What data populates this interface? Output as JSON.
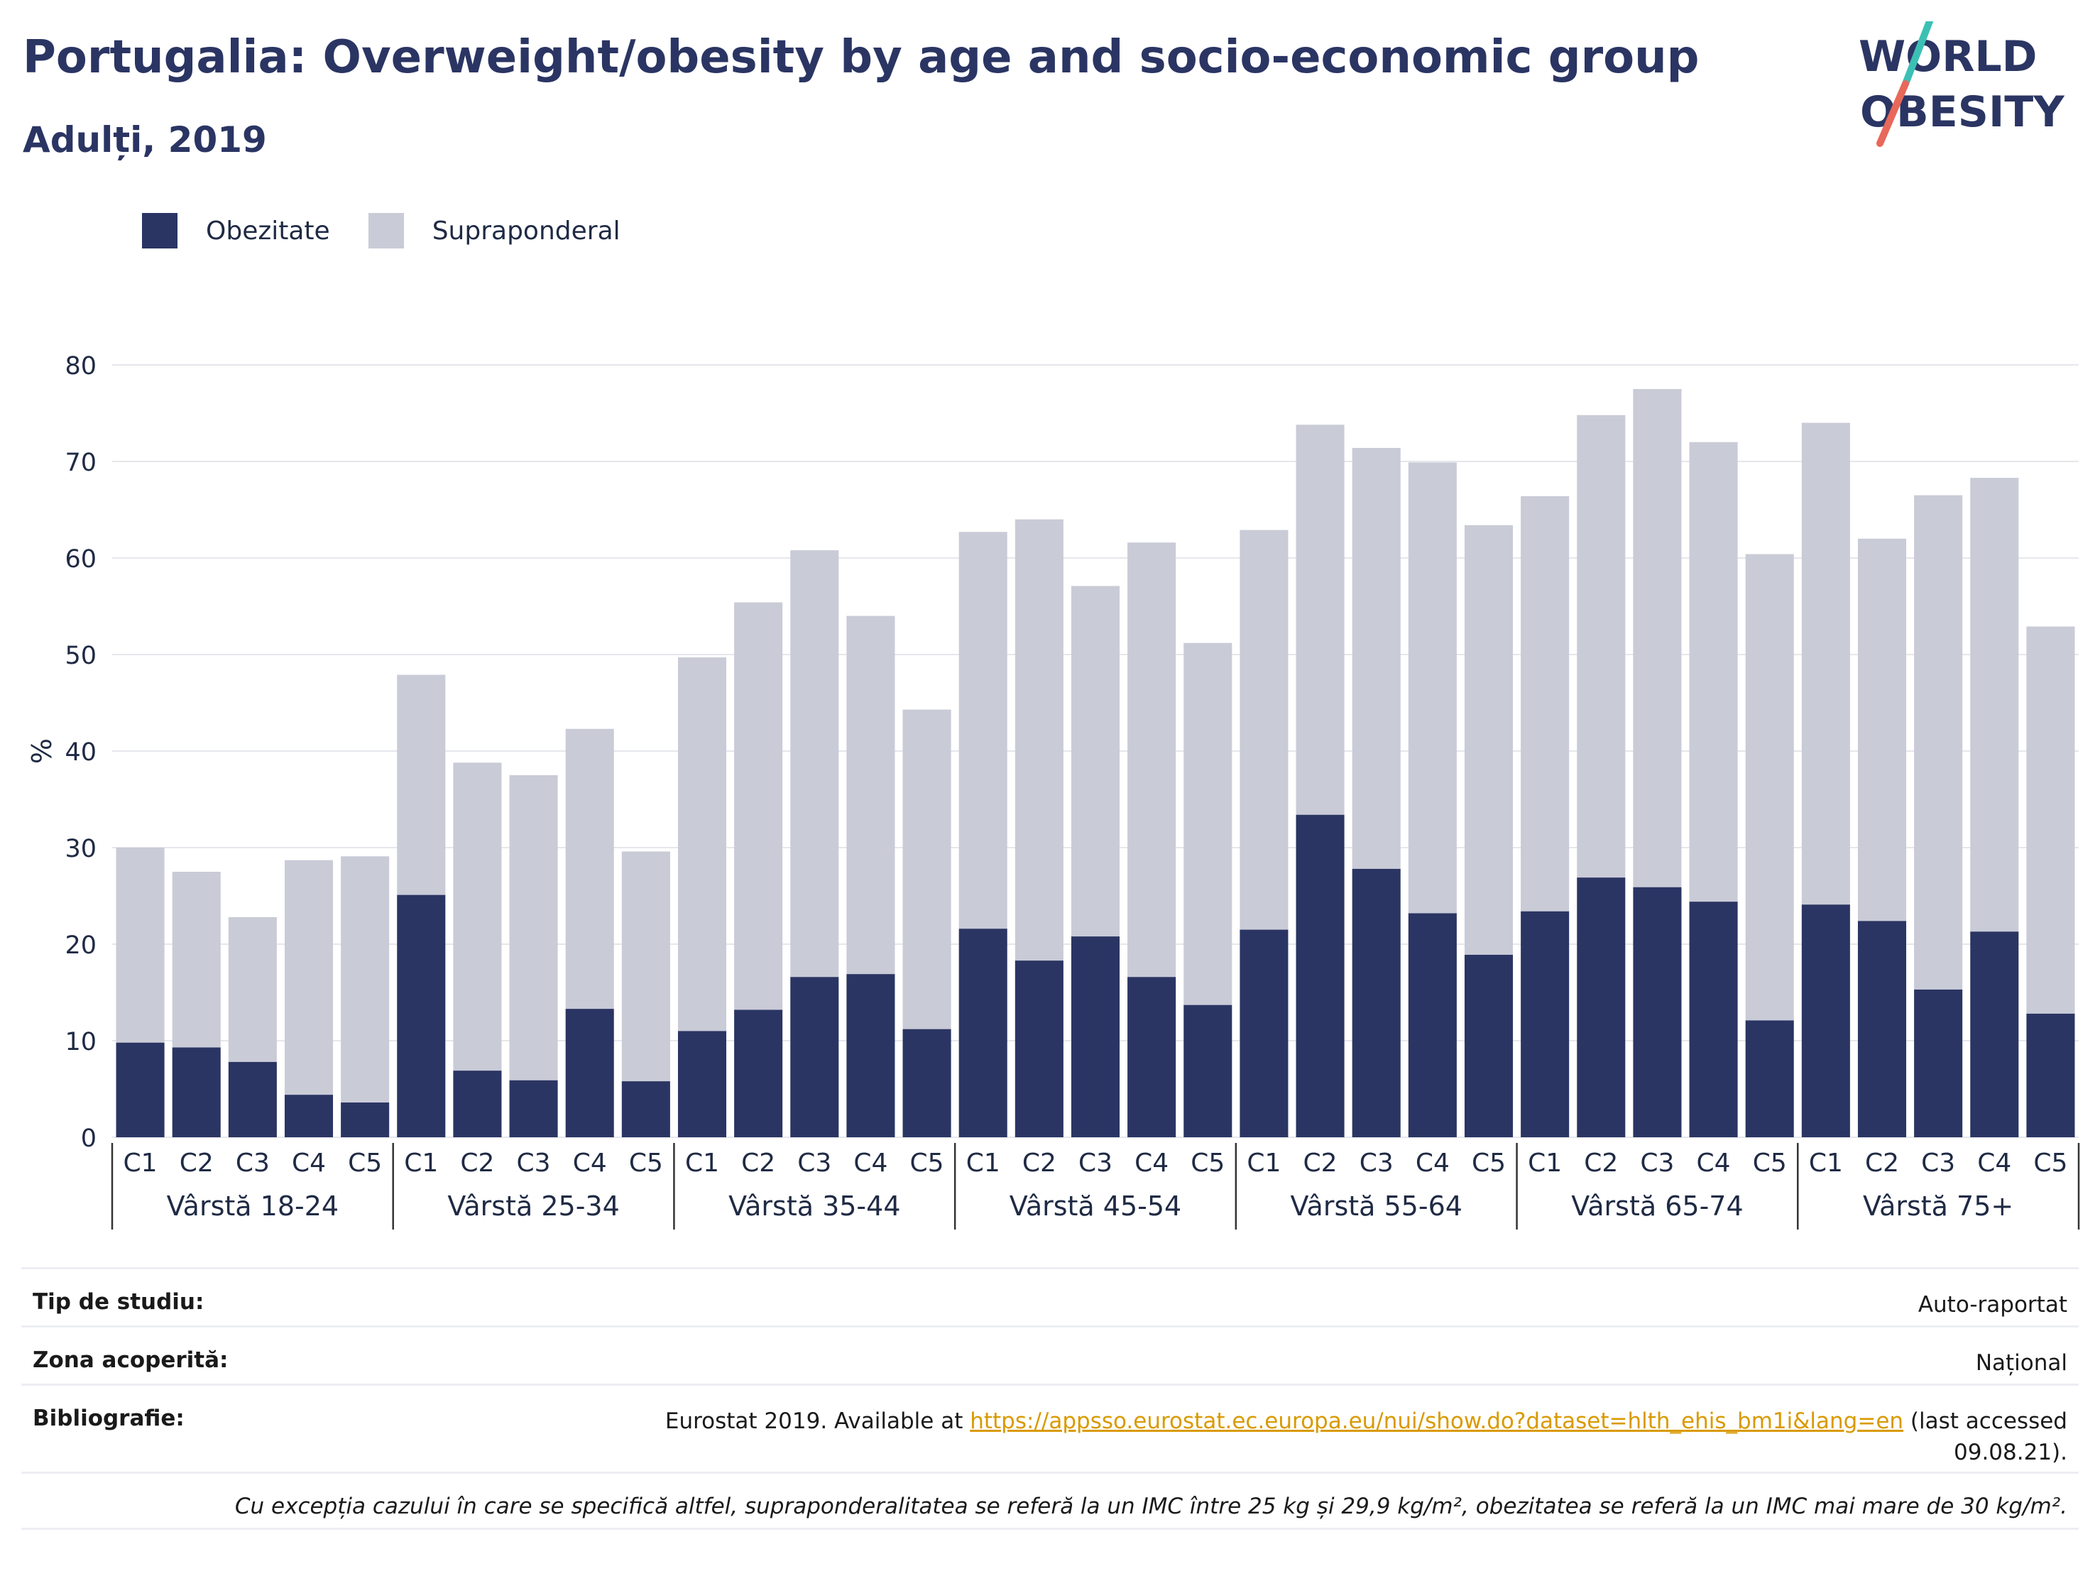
{
  "header": {
    "title": "Portugalia: Overweight/obesity by age and socio-economic group",
    "subtitle": "Adulți, 2019"
  },
  "logo": {
    "line1": "WORLD",
    "line2": "OBESITY",
    "colors": {
      "text": "#2b3563",
      "slash_top": "#3cc0b4",
      "slash_bottom": "#e8685a"
    }
  },
  "colors": {
    "obesity": "#2b3563",
    "overweight": "#c9cbd7",
    "grid": "#e6e7ec",
    "axis": "#333333"
  },
  "chart_data": {
    "type": "bar",
    "stacked": true,
    "title": "",
    "xlabel": "",
    "ylabel": "%",
    "ylim": [
      0,
      80
    ],
    "yticks": [
      0,
      10,
      20,
      30,
      40,
      50,
      60,
      70,
      80
    ],
    "grid": true,
    "legend_position": "top-left",
    "groups": [
      {
        "label": "Vârstă 18-24",
        "categories": [
          "C1",
          "C2",
          "C3",
          "C4",
          "C5"
        ],
        "obesity": [
          9.8,
          9.3,
          7.8,
          4.4,
          3.6
        ],
        "total": [
          30.0,
          27.5,
          22.8,
          28.7,
          29.1
        ]
      },
      {
        "label": "Vârstă 25-34",
        "categories": [
          "C1",
          "C2",
          "C3",
          "C4",
          "C5"
        ],
        "obesity": [
          25.1,
          6.9,
          5.9,
          13.3,
          5.8
        ],
        "total": [
          47.9,
          38.8,
          37.5,
          42.3,
          29.6
        ]
      },
      {
        "label": "Vârstă 35-44",
        "categories": [
          "C1",
          "C2",
          "C3",
          "C4",
          "C5"
        ],
        "obesity": [
          11.0,
          13.2,
          16.6,
          16.9,
          11.2
        ],
        "total": [
          49.7,
          55.4,
          60.8,
          54.0,
          44.3
        ]
      },
      {
        "label": "Vârstă 45-54",
        "categories": [
          "C1",
          "C2",
          "C3",
          "C4",
          "C5"
        ],
        "obesity": [
          21.6,
          18.3,
          20.8,
          16.6,
          13.7
        ],
        "total": [
          62.7,
          64.0,
          57.1,
          61.6,
          51.2
        ]
      },
      {
        "label": "Vârstă 55-64",
        "categories": [
          "C1",
          "C2",
          "C3",
          "C4",
          "C5"
        ],
        "obesity": [
          21.5,
          33.4,
          27.8,
          23.2,
          18.9
        ],
        "total": [
          62.9,
          73.8,
          71.4,
          69.9,
          63.4
        ]
      },
      {
        "label": "Vârstă 65-74",
        "categories": [
          "C1",
          "C2",
          "C3",
          "C4",
          "C5"
        ],
        "obesity": [
          23.4,
          26.9,
          25.9,
          24.4,
          12.1
        ],
        "total": [
          66.4,
          74.8,
          77.5,
          72.0,
          60.4
        ]
      },
      {
        "label": "Vârstă 75+",
        "categories": [
          "C1",
          "C2",
          "C3",
          "C4",
          "C5"
        ],
        "obesity": [
          24.1,
          22.4,
          15.3,
          21.3,
          12.8
        ],
        "total": [
          74.0,
          62.0,
          66.5,
          68.3,
          52.9
        ]
      }
    ],
    "series": [
      {
        "name": "Obezitate",
        "key": "obesity"
      },
      {
        "name": "Supraponderal",
        "key": "overweight"
      }
    ]
  },
  "info": {
    "tip_label": "Tip de studiu:",
    "tip_value": "Auto-raportat",
    "zona_label": "Zona acoperită:",
    "zona_value": "Național",
    "bib_label": "Bibliografie:",
    "bib_prefix": "Eurostat 2019. Available at ",
    "bib_link": "https://appsso.eurostat.ec.europa.eu/nui/show.do?dataset=hlth_ehis_bm1i&lang=en",
    "bib_suffix": " (last accessed 09.08.21).",
    "note": "Cu excepția cazului în care se specifică altfel, supraponderalitatea se referă la un IMC între 25 kg și 29,9 kg/m², obezitatea se referă la un IMC mai mare de 30 kg/m²."
  }
}
